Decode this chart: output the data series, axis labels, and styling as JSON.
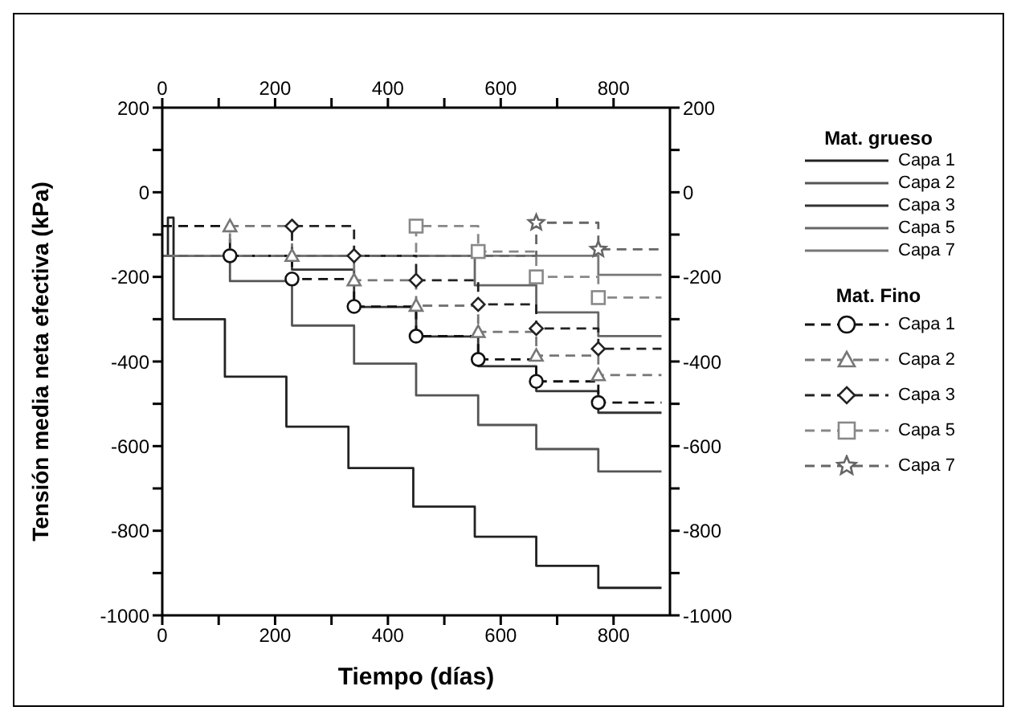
{
  "chart_data": {
    "type": "step",
    "xlabel": "Tiempo (días)",
    "ylabel": "Tensión media neta efectiva (kPa)",
    "xlim": [
      0,
      900
    ],
    "xticks": [
      0,
      {
        "value": 100,
        "label": null
      },
      200,
      {
        "value": 300,
        "label": null
      },
      400,
      {
        "value": 500,
        "label": null
      },
      600,
      {
        "value": 700,
        "label": null
      },
      800
    ],
    "x2lim": [
      0,
      900
    ],
    "x2ticks": [
      0,
      {
        "value": 100,
        "label": null
      },
      200,
      {
        "value": 300,
        "label": null
      },
      400,
      {
        "value": 500,
        "label": null
      },
      600,
      {
        "value": 700,
        "label": null
      },
      800
    ],
    "ylim": [
      -1000,
      200
    ],
    "yticks": [
      -1000,
      {
        "value": -900,
        "label": null
      },
      -800,
      {
        "value": -700,
        "label": null
      },
      -600,
      {
        "value": -500,
        "label": null
      },
      -400,
      {
        "value": -300,
        "label": null
      },
      -200,
      {
        "value": -100,
        "label": null
      },
      0,
      {
        "value": 100,
        "label": null
      },
      200
    ],
    "y2lim": [
      -1000,
      200
    ],
    "y2ticks": [
      -1000,
      {
        "value": -900,
        "label": null
      },
      -800,
      {
        "value": -700,
        "label": null
      },
      -600,
      {
        "value": -500,
        "label": null
      },
      -400,
      {
        "value": -300,
        "label": null
      },
      -200,
      {
        "value": -100,
        "label": null
      },
      0,
      {
        "value": 100,
        "label": null
      },
      200
    ],
    "legend": "right",
    "grid": false,
    "annotations": [
      "Mat. grueso",
      "Mat. Fino"
    ],
    "series": [
      {
        "name": "Capa 1",
        "color": "#222222",
        "line_style": "solid",
        "marker": "none",
        "x": [
          0,
          10,
          20,
          111,
          220,
          330,
          445,
          554,
          663,
          773,
          885
        ],
        "values": [
          -150,
          -60,
          -300,
          -436,
          -554,
          -652,
          -743,
          -814,
          -883,
          -935,
          -935
        ]
      },
      {
        "name": "Capa 2",
        "color": "#555555",
        "line_style": "solid",
        "marker": "none",
        "x": [
          0,
          120,
          230,
          340,
          450,
          560,
          663,
          773,
          885
        ],
        "values": [
          -150,
          -210,
          -315,
          -405,
          -480,
          -550,
          -607,
          -660,
          -660
        ]
      },
      {
        "name": "Capa 3",
        "color": "#333333",
        "line_style": "solid",
        "marker": "none",
        "x": [
          0,
          230,
          340,
          450,
          560,
          663,
          773,
          885
        ],
        "values": [
          -150,
          -183,
          -271,
          -341,
          -411,
          -470,
          -521,
          -521
        ]
      },
      {
        "name": "Capa 5",
        "color": "#666666",
        "line_style": "solid",
        "marker": "none",
        "x": [
          0,
          554,
          663,
          773,
          885
        ],
        "values": [
          -150,
          -220,
          -284,
          -340,
          -340
        ]
      },
      {
        "name": "Capa 7",
        "color": "#777777",
        "line_style": "solid",
        "marker": "none",
        "x": [
          0,
          773,
          885
        ],
        "values": [
          -150,
          -195,
          -195
        ]
      },
      {
        "name": "Capa 1",
        "color": "#111111",
        "line_style": "dashed",
        "marker": "circle",
        "x": [
          0,
          120,
          230,
          340,
          450,
          560,
          663,
          773,
          885
        ],
        "values": [
          -80,
          -150,
          -205,
          -270,
          -340,
          -395,
          -447,
          -497,
          -497
        ]
      },
      {
        "name": "Capa 2",
        "color": "#777777",
        "line_style": "dashed",
        "marker": "triangle",
        "x": [
          0,
          120,
          230,
          340,
          450,
          560,
          663,
          773,
          885
        ],
        "values": [
          -150,
          -80,
          -150,
          -208,
          -268,
          -330,
          -386,
          -432,
          -432
        ]
      },
      {
        "name": "Capa 3",
        "color": "#222222",
        "line_style": "dashed",
        "marker": "diamond",
        "x": [
          0,
          230,
          340,
          450,
          560,
          663,
          773,
          885
        ],
        "values": [
          -150,
          -80,
          -150,
          -208,
          -265,
          -322,
          -370,
          -370
        ]
      },
      {
        "name": "Capa 5",
        "color": "#888888",
        "line_style": "dashed",
        "marker": "square",
        "x": [
          0,
          450,
          560,
          663,
          773,
          885
        ],
        "values": [
          -150,
          -80,
          -140,
          -200,
          -249,
          -249
        ]
      },
      {
        "name": "Capa 7",
        "color": "#666666",
        "line_style": "dashed",
        "marker": "star",
        "x": [
          0,
          663,
          773,
          885
        ],
        "values": [
          -150,
          -72,
          -135,
          -135
        ]
      }
    ]
  }
}
